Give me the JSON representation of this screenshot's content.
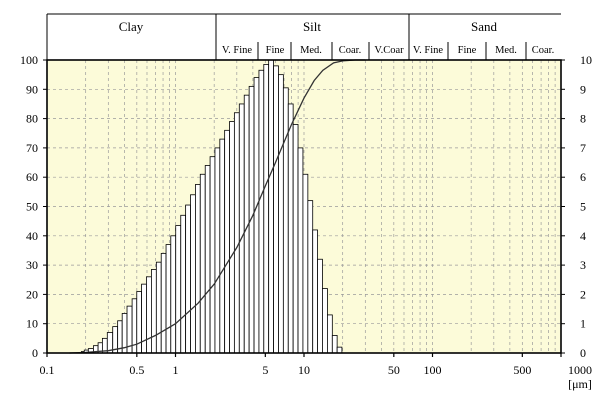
{
  "chart_data": {
    "type": "bar",
    "title": "",
    "xlabel": "",
    "x_scale": "log",
    "x_unit": "[μm]",
    "xlim": [
      0.1,
      1000
    ],
    "x_ticks": [
      0.1,
      0.5,
      1,
      5,
      10,
      50,
      100,
      500,
      1000
    ],
    "x_tick_labels": [
      "0.1",
      "0.5",
      "1",
      "5",
      "10",
      "50",
      "100",
      "500",
      "1000"
    ],
    "ylim": [
      0,
      100
    ],
    "y_ticks_left": [
      "0",
      "10",
      "20",
      "30",
      "40",
      "50",
      "60",
      "70",
      "80",
      "90",
      "100"
    ],
    "y_ticks_right": [
      "0",
      "1",
      "2",
      "3",
      "4",
      "5",
      "6",
      "7",
      "8",
      "9",
      "10"
    ],
    "grid": true,
    "plot_background": "#fcfbd9",
    "grain_classes": [
      {
        "name": "Clay",
        "range": [
          0.1,
          2
        ]
      },
      {
        "name": "Silt",
        "range": [
          2,
          63
        ],
        "subclasses": [
          "V. Fine",
          "Fine",
          "Med.",
          "Coar.",
          "V.Coar"
        ]
      },
      {
        "name": "Sand",
        "range": [
          63,
          1000
        ],
        "subclasses": [
          "V. Fine",
          "Fine",
          "Med.",
          "Coar."
        ]
      }
    ],
    "series": [
      {
        "type": "bar",
        "x": [
          0.19,
          0.2,
          0.22,
          0.24,
          0.26,
          0.28,
          0.31,
          0.34,
          0.37,
          0.4,
          0.44,
          0.48,
          0.52,
          0.57,
          0.62,
          0.68,
          0.74,
          0.81,
          0.88,
          0.96,
          1.05,
          1.15,
          1.25,
          1.37,
          1.49,
          1.63,
          1.78,
          1.94,
          2.12,
          2.31,
          2.52,
          2.75,
          3.0,
          3.28,
          3.58,
          3.91,
          4.27,
          4.66,
          5.08,
          5.55,
          6.06,
          6.61,
          7.22,
          7.88,
          8.6,
          9.39,
          10.25,
          11.2,
          12.2,
          13.3,
          14.55,
          15.9,
          17.35,
          18.9
        ],
        "values": [
          0.05,
          0.1,
          0.15,
          0.25,
          0.35,
          0.5,
          0.7,
          0.9,
          1.1,
          1.35,
          1.6,
          1.85,
          2.1,
          2.35,
          2.6,
          2.85,
          3.1,
          3.4,
          3.7,
          4.0,
          4.35,
          4.7,
          5.05,
          5.4,
          5.75,
          6.1,
          6.4,
          6.7,
          7.0,
          7.3,
          7.6,
          7.9,
          8.2,
          8.5,
          8.8,
          9.1,
          9.4,
          9.65,
          9.85,
          10.0,
          9.8,
          9.5,
          9.05,
          8.5,
          7.8,
          7.0,
          6.1,
          5.2,
          4.2,
          3.2,
          2.2,
          1.3,
          0.6,
          0.2
        ]
      },
      {
        "type": "line",
        "x": [
          0.15,
          0.2,
          0.3,
          0.4,
          0.5,
          0.7,
          1.0,
          1.5,
          2.0,
          3.0,
          4.0,
          5.0,
          6.0,
          7.0,
          8.0,
          10.0,
          12.0,
          14.0,
          17.0,
          20.0,
          25.0,
          30.0
        ],
        "values": [
          0.0,
          0.2,
          0.8,
          1.8,
          3.0,
          6.0,
          10.0,
          17.0,
          23.5,
          36.0,
          47.0,
          57.0,
          65.0,
          72.0,
          78.0,
          87.0,
          93.0,
          96.5,
          99.0,
          99.7,
          100.0,
          100.0
        ]
      }
    ]
  }
}
